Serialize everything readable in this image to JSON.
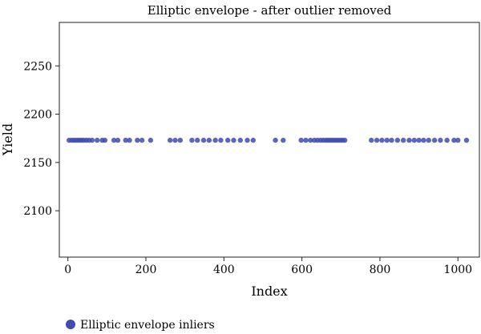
{
  "chart_data": {
    "type": "scatter",
    "title": "Elliptic envelope - after outlier removed",
    "xlabel": "Index",
    "ylabel": "Yield",
    "xlim": [
      -22,
      1055
    ],
    "ylim": [
      2052,
      2295
    ],
    "xticks": [
      0,
      200,
      400,
      600,
      800,
      1000
    ],
    "yticks": [
      2100,
      2150,
      2200,
      2250
    ],
    "grid": false,
    "legend_position": "bottom-left",
    "series": [
      {
        "name": "Elliptic envelope inliers",
        "color": "#3f4bb0",
        "x": [
          3,
          10,
          16,
          22,
          28,
          34,
          40,
          47,
          54,
          62,
          75,
          88,
          95,
          118,
          128,
          148,
          158,
          178,
          190,
          212,
          262,
          275,
          288,
          318,
          332,
          348,
          362,
          378,
          392,
          410,
          425,
          442,
          460,
          475,
          532,
          552,
          598,
          610,
          622,
          632,
          640,
          648,
          655,
          662,
          668,
          674,
          680,
          686,
          692,
          698,
          704,
          710,
          778,
          792,
          805,
          818,
          830,
          845,
          860,
          875,
          888,
          900,
          912,
          925,
          940,
          955,
          972,
          990,
          1000,
          1022
        ],
        "y": [
          2173,
          2173,
          2173,
          2173,
          2173,
          2173,
          2173,
          2173,
          2173,
          2173,
          2173,
          2173,
          2173,
          2173,
          2173,
          2173,
          2173,
          2173,
          2173,
          2173,
          2173,
          2173,
          2173,
          2173,
          2173,
          2173,
          2173,
          2173,
          2173,
          2173,
          2173,
          2173,
          2173,
          2173,
          2173,
          2173,
          2173,
          2173,
          2173,
          2173,
          2173,
          2173,
          2173,
          2173,
          2173,
          2173,
          2173,
          2173,
          2173,
          2173,
          2173,
          2173,
          2173,
          2173,
          2173,
          2173,
          2173,
          2173,
          2173,
          2173,
          2173,
          2173,
          2173,
          2173,
          2173,
          2173,
          2173,
          2173,
          2173,
          2173
        ]
      }
    ]
  }
}
